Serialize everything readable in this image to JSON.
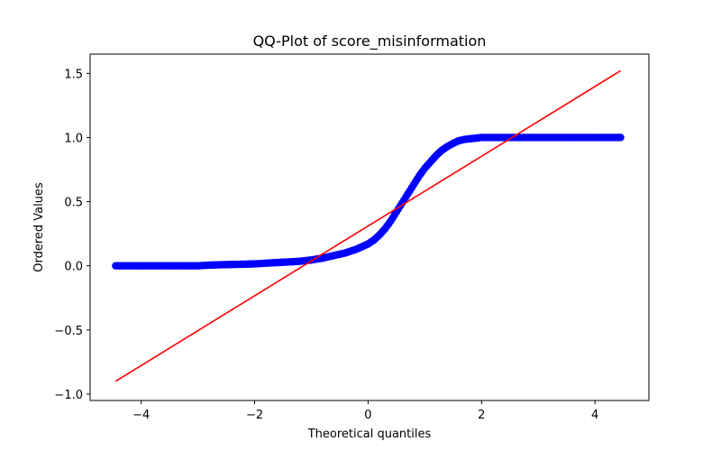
{
  "chart_data": {
    "type": "scatter",
    "title": "QQ-Plot of score_misinformation",
    "xlabel": "Theoretical quantiles",
    "ylabel": "Ordered Values",
    "xlim": [
      -4.9,
      4.95
    ],
    "ylim": [
      -1.05,
      1.65
    ],
    "xticks": [
      -4,
      -2,
      0,
      2,
      4
    ],
    "xtick_labels": [
      "−4",
      "−2",
      "0",
      "2",
      "4"
    ],
    "yticks": [
      -1.0,
      -0.5,
      0.0,
      0.5,
      1.0,
      1.5
    ],
    "ytick_labels": [
      "−1.0",
      "−0.5",
      "0.0",
      "0.5",
      "1.0",
      "1.5"
    ],
    "grid": false,
    "legend": "none",
    "series": [
      {
        "kind": "points",
        "color": "#0000ff",
        "x": [
          -4.45,
          -4.26,
          -4.15,
          -4.0,
          -3.8,
          -3.6,
          -3.4,
          -3.2,
          -3.0,
          -2.8,
          -2.6,
          -2.4,
          -2.2,
          -2.0,
          -1.8,
          -1.6,
          -1.4,
          -1.2,
          -1.0,
          -0.8,
          -0.6,
          -0.4,
          -0.2,
          0.0,
          0.1,
          0.2,
          0.3,
          0.4,
          0.5,
          0.6,
          0.7,
          0.8,
          0.9,
          1.0,
          1.1,
          1.2,
          1.3,
          1.4,
          1.5,
          1.6,
          1.7,
          1.8,
          1.9,
          2.0,
          2.2,
          2.4,
          2.6,
          2.8,
          3.0,
          3.2,
          3.4,
          3.6,
          3.8,
          4.0,
          4.2,
          4.28,
          4.45
        ],
        "y": [
          0.0,
          0.0,
          0.0,
          0.0,
          0.0,
          0.0,
          0.0,
          0.0,
          0.0,
          0.005,
          0.008,
          0.01,
          0.012,
          0.015,
          0.02,
          0.025,
          0.03,
          0.035,
          0.045,
          0.06,
          0.08,
          0.1,
          0.13,
          0.17,
          0.2,
          0.24,
          0.29,
          0.35,
          0.42,
          0.49,
          0.56,
          0.63,
          0.7,
          0.76,
          0.81,
          0.86,
          0.9,
          0.93,
          0.955,
          0.975,
          0.985,
          0.99,
          0.995,
          1.0,
          1.0,
          1.0,
          1.0,
          1.0,
          1.0,
          1.0,
          1.0,
          1.0,
          1.0,
          1.0,
          1.0,
          1.0,
          1.0
        ]
      },
      {
        "kind": "fit-line",
        "color": "#ff0000",
        "x": [
          -4.45,
          4.45
        ],
        "y": [
          -0.9,
          1.52
        ]
      }
    ]
  }
}
